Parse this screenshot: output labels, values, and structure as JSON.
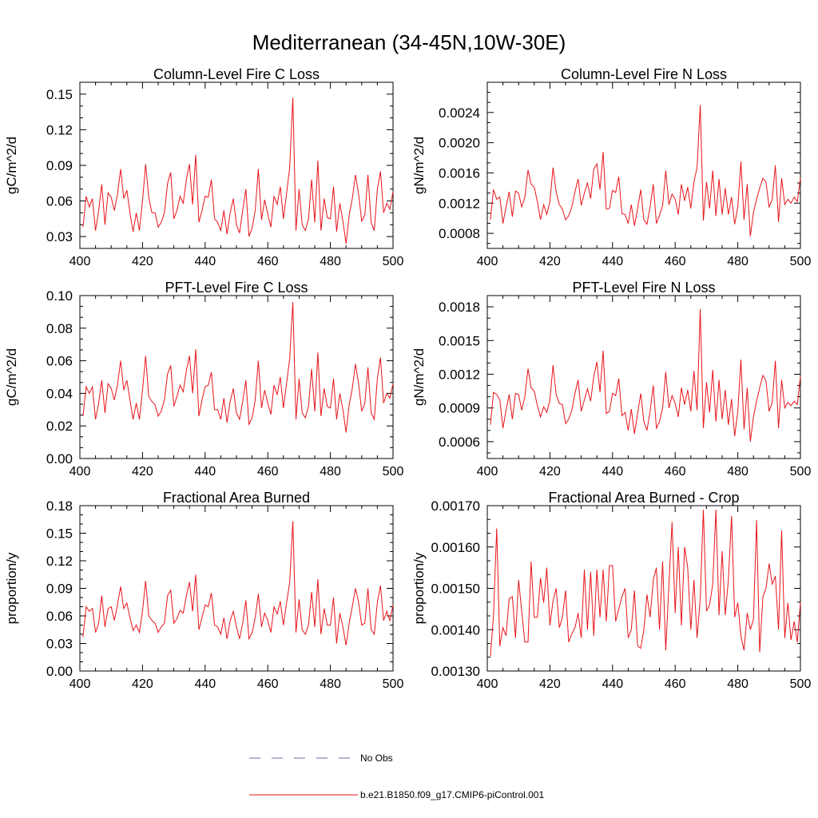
{
  "figure": {
    "title": "Mediterranean (34-45N,10W-30E)"
  },
  "legend": {
    "obs_label": "No Obs",
    "obs_color": "#6a6aa8",
    "model_label": "b.e21.B1850.f09_g17.CMIP6-piControl.001",
    "model_color": "#e8141a"
  },
  "chart_data": [
    {
      "type": "line",
      "title": "Column-Level Fire C Loss",
      "xlabel": "",
      "ylabel": "gC/m^2/d",
      "xlim": [
        400,
        500
      ],
      "ylim": [
        0.02,
        0.16
      ],
      "xticks": [
        400,
        420,
        440,
        460,
        480,
        500
      ],
      "yticks": [
        0.03,
        0.06,
        0.09,
        0.12,
        0.15
      ],
      "ytick_labels": [
        "0.03",
        "0.06",
        "0.09",
        "0.12",
        "0.15"
      ],
      "series": [
        {
          "name": "b.e21.B1850.f09_g17.CMIP6-piControl.001",
          "x_start": 401,
          "x_step": 1,
          "values": [
            0.038,
            0.064,
            0.055,
            0.062,
            0.035,
            0.052,
            0.074,
            0.04,
            0.067,
            0.063,
            0.052,
            0.065,
            0.087,
            0.062,
            0.069,
            0.05,
            0.034,
            0.05,
            0.035,
            0.06,
            0.091,
            0.063,
            0.05,
            0.05,
            0.038,
            0.042,
            0.05,
            0.075,
            0.084,
            0.045,
            0.052,
            0.064,
            0.058,
            0.078,
            0.091,
            0.057,
            0.099,
            0.042,
            0.052,
            0.064,
            0.063,
            0.078,
            0.045,
            0.042,
            0.035,
            0.052,
            0.032,
            0.05,
            0.062,
            0.04,
            0.033,
            0.052,
            0.07,
            0.03,
            0.037,
            0.052,
            0.087,
            0.044,
            0.061,
            0.049,
            0.038,
            0.064,
            0.057,
            0.072,
            0.045,
            0.066,
            0.088,
            0.147,
            0.035,
            0.07,
            0.04,
            0.035,
            0.045,
            0.078,
            0.042,
            0.094,
            0.035,
            0.062,
            0.046,
            0.045,
            0.072,
            0.034,
            0.058,
            0.043,
            0.024,
            0.048,
            0.062,
            0.082,
            0.066,
            0.043,
            0.048,
            0.082,
            0.042,
            0.035,
            0.07,
            0.085,
            0.05,
            0.058,
            0.053,
            0.068
          ]
        }
      ]
    },
    {
      "type": "line",
      "title": "Column-Level Fire N Loss",
      "xlabel": "",
      "ylabel": "gN/m^2/d",
      "xlim": [
        400,
        500
      ],
      "ylim": [
        0.0006,
        0.0028
      ],
      "xticks": [
        400,
        420,
        440,
        460,
        480,
        500
      ],
      "yticks": [
        0.0008,
        0.0012,
        0.0016,
        0.002,
        0.0024
      ],
      "ytick_labels": [
        "0.0008",
        "0.0012",
        "0.0016",
        "0.0020",
        "0.0024"
      ],
      "series": [
        {
          "name": "b.e21.B1850.f09_g17.CMIP6-piControl.001",
          "x_start": 401,
          "x_step": 1,
          "values": [
            0.00098,
            0.00138,
            0.00125,
            0.00128,
            0.00093,
            0.00115,
            0.00135,
            0.00102,
            0.00136,
            0.00133,
            0.00115,
            0.00128,
            0.00164,
            0.00145,
            0.00141,
            0.00122,
            0.00098,
            0.00118,
            0.00105,
            0.00122,
            0.00167,
            0.00135,
            0.00118,
            0.00112,
            0.00098,
            0.00103,
            0.00115,
            0.00135,
            0.00152,
            0.00117,
            0.00133,
            0.00147,
            0.00126,
            0.00165,
            0.00172,
            0.00138,
            0.00188,
            0.00112,
            0.00113,
            0.00137,
            0.00134,
            0.00155,
            0.00106,
            0.00105,
            0.00093,
            0.00118,
            0.0009,
            0.00113,
            0.00138,
            0.00098,
            0.00092,
            0.00115,
            0.00145,
            0.00093,
            0.00104,
            0.00117,
            0.00163,
            0.00118,
            0.00132,
            0.00125,
            0.00105,
            0.00145,
            0.00123,
            0.00141,
            0.00113,
            0.00148,
            0.00167,
            0.0025,
            0.00097,
            0.00148,
            0.00113,
            0.00163,
            0.00103,
            0.00152,
            0.00105,
            0.0014,
            0.00105,
            0.00128,
            0.00092,
            0.00115,
            0.00175,
            0.00098,
            0.00145,
            0.00076,
            0.00108,
            0.00125,
            0.0014,
            0.00153,
            0.00148,
            0.00115,
            0.00125,
            0.0017,
            0.00095,
            0.00153,
            0.00118,
            0.00125,
            0.0012,
            0.00128,
            0.00122,
            0.00153
          ]
        }
      ]
    },
    {
      "type": "line",
      "title": "PFT-Level Fire C Loss",
      "xlabel": "",
      "ylabel": "gC/m^2/d",
      "xlim": [
        400,
        500
      ],
      "ylim": [
        0.0,
        0.1
      ],
      "xticks": [
        400,
        420,
        440,
        460,
        480,
        500
      ],
      "yticks": [
        0.0,
        0.02,
        0.04,
        0.06,
        0.08,
        0.1
      ],
      "ytick_labels": [
        "0.00",
        "0.02",
        "0.04",
        "0.06",
        "0.08",
        "0.10"
      ],
      "series": [
        {
          "name": "b.e21.B1850.f09_g17.CMIP6-piControl.001",
          "x_start": 401,
          "x_step": 1,
          "values": [
            0.026,
            0.044,
            0.04,
            0.044,
            0.024,
            0.034,
            0.048,
            0.028,
            0.046,
            0.043,
            0.036,
            0.045,
            0.06,
            0.042,
            0.048,
            0.036,
            0.024,
            0.034,
            0.024,
            0.042,
            0.063,
            0.038,
            0.035,
            0.033,
            0.026,
            0.029,
            0.036,
            0.052,
            0.057,
            0.032,
            0.038,
            0.045,
            0.041,
            0.054,
            0.063,
            0.04,
            0.067,
            0.026,
            0.036,
            0.044,
            0.045,
            0.053,
            0.03,
            0.03,
            0.024,
            0.037,
            0.022,
            0.035,
            0.043,
            0.028,
            0.024,
            0.035,
            0.048,
            0.021,
            0.025,
            0.036,
            0.06,
            0.031,
            0.042,
            0.034,
            0.027,
            0.045,
            0.039,
            0.05,
            0.031,
            0.046,
            0.061,
            0.096,
            0.024,
            0.049,
            0.028,
            0.025,
            0.032,
            0.055,
            0.029,
            0.065,
            0.026,
            0.043,
            0.032,
            0.031,
            0.049,
            0.024,
            0.04,
            0.03,
            0.016,
            0.033,
            0.043,
            0.058,
            0.046,
            0.029,
            0.034,
            0.056,
            0.028,
            0.024,
            0.049,
            0.062,
            0.034,
            0.04,
            0.037,
            0.046
          ]
        }
      ]
    },
    {
      "type": "line",
      "title": "PFT-Level Fire N Loss",
      "xlabel": "",
      "ylabel": "gN/m^2/d",
      "xlim": [
        400,
        500
      ],
      "ylim": [
        0.00045,
        0.0019
      ],
      "xticks": [
        400,
        420,
        440,
        460,
        480,
        500
      ],
      "yticks": [
        0.0006,
        0.0009,
        0.0012,
        0.0015,
        0.0018
      ],
      "ytick_labels": [
        "0.0006",
        "0.0009",
        "0.0012",
        "0.0015",
        "0.0018"
      ],
      "series": [
        {
          "name": "b.e21.B1850.f09_g17.CMIP6-piControl.001",
          "x_start": 401,
          "x_step": 1,
          "values": [
            0.00075,
            0.00104,
            0.00102,
            0.00097,
            0.00072,
            0.00088,
            0.00102,
            0.0008,
            0.00103,
            0.00102,
            0.00088,
            0.001,
            0.00125,
            0.00108,
            0.00105,
            0.00092,
            0.00082,
            0.00091,
            0.00086,
            0.00097,
            0.00128,
            0.00102,
            0.00094,
            0.00093,
            0.00076,
            0.0008,
            0.00088,
            0.00103,
            0.00115,
            0.00087,
            0.00097,
            0.00107,
            0.00096,
            0.00118,
            0.00131,
            0.00104,
            0.00141,
            0.00085,
            0.00087,
            0.00103,
            0.00101,
            0.00116,
            0.00083,
            0.00086,
            0.0007,
            0.00089,
            0.00067,
            0.00085,
            0.00103,
            0.00078,
            0.0007,
            0.00087,
            0.0011,
            0.00072,
            0.00078,
            0.0009,
            0.00122,
            0.0009,
            0.00101,
            0.00094,
            0.00082,
            0.00108,
            0.00093,
            0.00106,
            0.00087,
            0.00123,
            0.00088,
            0.00178,
            0.00072,
            0.00113,
            0.00086,
            0.00124,
            0.00078,
            0.00115,
            0.0008,
            0.00106,
            0.00075,
            0.00098,
            0.00065,
            0.00087,
            0.00133,
            0.00071,
            0.00108,
            0.0006,
            0.00082,
            0.00096,
            0.00108,
            0.00119,
            0.00114,
            0.00087,
            0.00095,
            0.00132,
            0.00072,
            0.00115,
            0.0009,
            0.00095,
            0.00092,
            0.00096,
            0.00093,
            0.00118
          ]
        }
      ]
    },
    {
      "type": "line",
      "title": "Fractional Area Burned",
      "xlabel": "",
      "ylabel": "proportion/y",
      "xlim": [
        400,
        500
      ],
      "ylim": [
        0.0,
        0.18
      ],
      "xticks": [
        400,
        420,
        440,
        460,
        480,
        500
      ],
      "yticks": [
        0.0,
        0.03,
        0.06,
        0.09,
        0.12,
        0.15,
        0.18
      ],
      "ytick_labels": [
        "0.00",
        "0.03",
        "0.06",
        "0.09",
        "0.12",
        "0.15",
        "0.18"
      ],
      "series": [
        {
          "name": "b.e21.B1850.f09_g17.CMIP6-piControl.001",
          "x_start": 401,
          "x_step": 1,
          "values": [
            0.037,
            0.07,
            0.065,
            0.068,
            0.042,
            0.052,
            0.082,
            0.048,
            0.068,
            0.07,
            0.055,
            0.072,
            0.092,
            0.068,
            0.074,
            0.058,
            0.044,
            0.05,
            0.042,
            0.065,
            0.098,
            0.06,
            0.055,
            0.052,
            0.042,
            0.048,
            0.052,
            0.082,
            0.088,
            0.052,
            0.057,
            0.066,
            0.063,
            0.082,
            0.097,
            0.065,
            0.105,
            0.045,
            0.058,
            0.072,
            0.07,
            0.085,
            0.05,
            0.048,
            0.04,
            0.058,
            0.035,
            0.055,
            0.065,
            0.048,
            0.035,
            0.052,
            0.077,
            0.035,
            0.042,
            0.058,
            0.084,
            0.048,
            0.063,
            0.055,
            0.042,
            0.07,
            0.062,
            0.076,
            0.05,
            0.074,
            0.096,
            0.163,
            0.042,
            0.078,
            0.045,
            0.04,
            0.05,
            0.086,
            0.048,
            0.1,
            0.04,
            0.068,
            0.05,
            0.05,
            0.08,
            0.03,
            0.063,
            0.048,
            0.028,
            0.052,
            0.07,
            0.09,
            0.075,
            0.05,
            0.052,
            0.09,
            0.045,
            0.04,
            0.075,
            0.093,
            0.055,
            0.065,
            0.055,
            0.072
          ]
        }
      ]
    },
    {
      "type": "line",
      "title": "Fractional Area Burned - Crop",
      "xlabel": "",
      "ylabel": "proportion/y",
      "xlim": [
        400,
        500
      ],
      "ylim": [
        0.0013,
        0.0017
      ],
      "xticks": [
        400,
        420,
        440,
        460,
        480,
        500
      ],
      "yticks": [
        0.0013,
        0.0014,
        0.0015,
        0.0016,
        0.0017
      ],
      "ytick_labels": [
        "0.00130",
        "0.00140",
        "0.00150",
        "0.00160",
        "0.00170"
      ],
      "series": [
        {
          "name": "b.e21.B1850.f09_g17.CMIP6-piControl.001",
          "x_start": 401,
          "x_step": 1,
          "values": [
            0.001335,
            0.001435,
            0.001645,
            0.00136,
            0.001405,
            0.001385,
            0.001475,
            0.00148,
            0.00138,
            0.00152,
            0.001445,
            0.00137,
            0.00137,
            0.001565,
            0.00143,
            0.00143,
            0.001525,
            0.001465,
            0.00155,
            0.00141,
            0.00147,
            0.0015,
            0.001405,
            0.00143,
            0.001495,
            0.00137,
            0.00139,
            0.001405,
            0.00144,
            0.00138,
            0.001545,
            0.0014,
            0.00154,
            0.001385,
            0.001545,
            0.00143,
            0.001545,
            0.00142,
            0.001555,
            0.001555,
            0.00142,
            0.00145,
            0.00148,
            0.0015,
            0.00138,
            0.0014,
            0.001495,
            0.00136,
            0.001355,
            0.0014,
            0.001485,
            0.00143,
            0.00152,
            0.00155,
            0.0014,
            0.001565,
            0.00135,
            0.00151,
            0.00166,
            0.00144,
            0.0016,
            0.00141,
            0.0016,
            0.00155,
            0.0014,
            0.00152,
            0.00138,
            0.001475,
            0.00169,
            0.001445,
            0.00146,
            0.00151,
            0.00169,
            0.001435,
            0.00159,
            0.001435,
            0.00152,
            0.001675,
            0.00143,
            0.001465,
            0.001385,
            0.00135,
            0.00144,
            0.0014,
            0.001425,
            0.001665,
            0.001345,
            0.00148,
            0.0015,
            0.00156,
            0.00151,
            0.00153,
            0.0014,
            0.00164,
            0.00138,
            0.001465,
            0.001375,
            0.00142,
            0.00137,
            0.001465
          ]
        }
      ]
    }
  ]
}
